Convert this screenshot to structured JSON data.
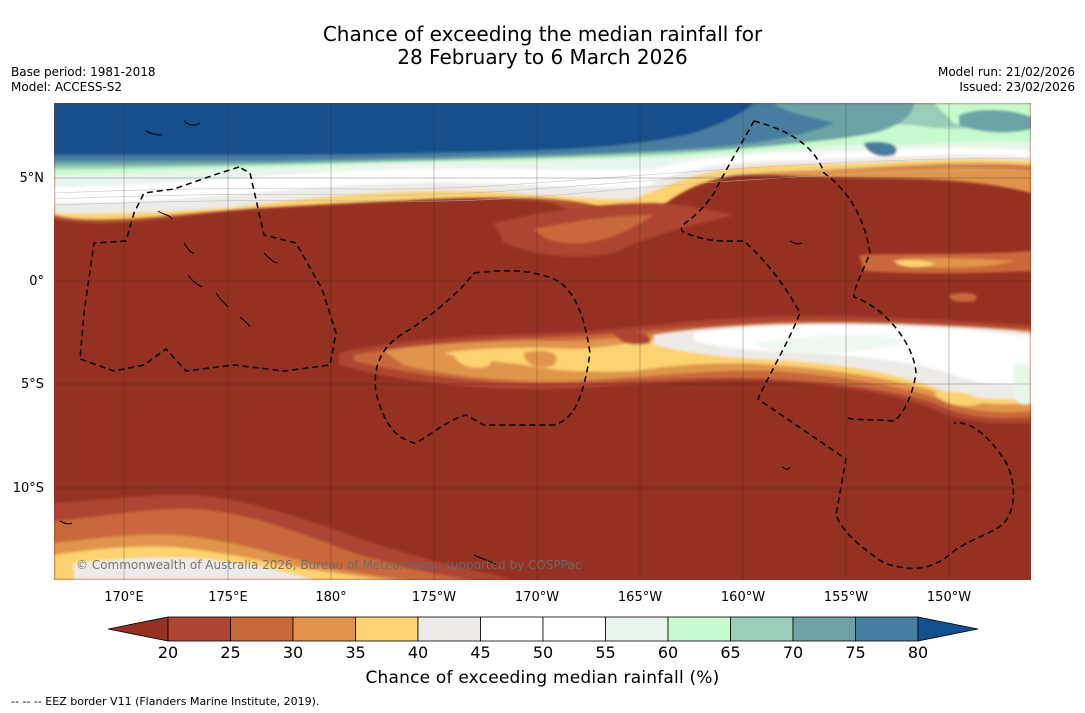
{
  "header": {
    "title_line1": "Chance of exceeding the median rainfall for",
    "title_line2": "28 February to 6 March 2026",
    "base_period": "Base period: 1981-2018",
    "model": "Model: ACCESS-S2",
    "model_run": "Model run: 21/02/2026",
    "issued": "Issued: 23/02/2026"
  },
  "map": {
    "lat_labels": [
      "5°N",
      "0°",
      "5°S",
      "10°S"
    ],
    "lon_labels": [
      "170°E",
      "175°E",
      "180°",
      "175°W",
      "170°W",
      "165°W",
      "160°W",
      "155°W",
      "150°W"
    ],
    "copyright": "© Commonwealth of Australia 2026, Bureau of Meteorology, supported by COSPPac"
  },
  "colorbar": {
    "ticks": [
      "20",
      "25",
      "30",
      "35",
      "40",
      "45",
      "50",
      "55",
      "60",
      "65",
      "70",
      "75",
      "80"
    ],
    "colors": [
      "#953122",
      "#ad4530",
      "#c9693a",
      "#e1954c",
      "#fdd270",
      "#eeeae5",
      "#ffffff",
      "#ffffff",
      "#e9f6eb",
      "#c7fbcd",
      "#9acdb8",
      "#6da3a6",
      "#467ea0",
      "#134f8b"
    ],
    "label": "Chance of exceeding median rainfall (%)"
  },
  "legend": {
    "eez_text": "-- -- -- EEZ border V11 (Flanders Marine Institute, 2019)."
  }
}
